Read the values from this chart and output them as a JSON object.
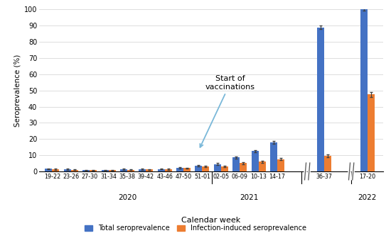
{
  "categories": [
    "19-22",
    "23-26",
    "27-30",
    "31-34",
    "35-38",
    "39-42",
    "43-46",
    "47-50",
    "51-01",
    "02-05",
    "06-09",
    "10-13",
    "14-17",
    "36-37",
    "17-20"
  ],
  "total_sero": [
    1.5,
    1.2,
    0.8,
    0.8,
    1.2,
    1.3,
    1.4,
    2.2,
    3.5,
    4.5,
    8.5,
    12.5,
    18.0,
    89.0,
    100.0
  ],
  "total_sero_err": [
    0.4,
    0.3,
    0.2,
    0.2,
    0.3,
    0.3,
    0.3,
    0.4,
    0.5,
    0.6,
    0.7,
    0.8,
    1.0,
    1.0,
    0.5
  ],
  "infect_sero": [
    1.2,
    1.0,
    0.7,
    0.7,
    1.0,
    1.1,
    1.2,
    2.0,
    3.0,
    3.0,
    5.0,
    6.0,
    7.5,
    9.5,
    47.5
  ],
  "infect_sero_err": [
    0.3,
    0.25,
    0.2,
    0.2,
    0.25,
    0.25,
    0.3,
    0.35,
    0.4,
    0.5,
    0.5,
    0.6,
    0.7,
    0.8,
    1.5
  ],
  "color_total": "#4472c4",
  "color_infect": "#ed7d31",
  "ylabel": "Seroprevalence (%)",
  "xlabel": "Calendar week",
  "ylim": [
    0,
    100
  ],
  "yticks": [
    0,
    10,
    20,
    30,
    40,
    50,
    60,
    70,
    80,
    90,
    100
  ],
  "annotation_text": "Start of\nvaccinations",
  "legend_labels": [
    "Total seroprevalence",
    "Infection-induced seroprevalence"
  ],
  "bar_width": 0.38,
  "arrow_color": "#7ab8d9"
}
